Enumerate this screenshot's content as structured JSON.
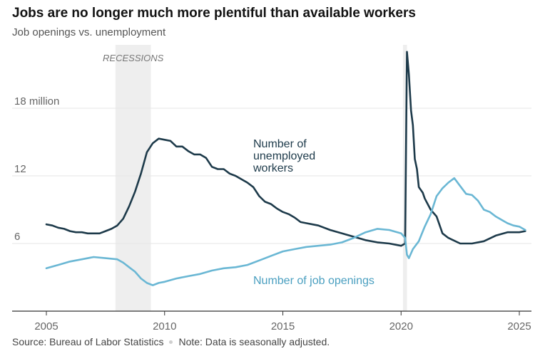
{
  "header": {
    "title": "Jobs are no longer much more plentiful than available workers",
    "subtitle": "Job openings vs. unemployment"
  },
  "footer": {
    "source": "Source: Bureau of Labor Statistics",
    "note": "Note: Data is seasonally adjusted."
  },
  "colors": {
    "unemployed": "#1d3a4a",
    "openings": "#6ab7d4",
    "recession_shade": "#eeeeee",
    "grid": "#e6e6e6",
    "axis": "#333333"
  },
  "chart_data": {
    "type": "line",
    "title": "Jobs are no longer much more plentiful than available workers",
    "subtitle": "Job openings vs. unemployment",
    "xlim": [
      2005,
      2025.5
    ],
    "ylim": [
      0,
      23
    ],
    "x_ticks": [
      2005,
      2010,
      2015,
      2020,
      2025
    ],
    "y_ticks": [
      {
        "value": 6,
        "label": "6"
      },
      {
        "value": 12,
        "label": "12"
      },
      {
        "value": 18,
        "label": "18 million"
      }
    ],
    "grid": true,
    "recessions": [
      {
        "start": 2007.92,
        "end": 2009.42
      },
      {
        "start": 2020.08,
        "end": 2020.25
      }
    ],
    "recession_label": "RECESSIONS",
    "series": [
      {
        "name": "Number of unemployed workers",
        "label_lines": [
          "Number of",
          "unemployed",
          "workers"
        ],
        "x": [
          2005.0,
          2005.25,
          2005.5,
          2005.75,
          2006.0,
          2006.25,
          2006.5,
          2006.75,
          2007.0,
          2007.25,
          2007.5,
          2007.75,
          2008.0,
          2008.25,
          2008.5,
          2008.75,
          2009.0,
          2009.25,
          2009.5,
          2009.75,
          2010.0,
          2010.25,
          2010.5,
          2010.75,
          2011.0,
          2011.25,
          2011.5,
          2011.75,
          2012.0,
          2012.25,
          2012.5,
          2012.75,
          2013.0,
          2013.25,
          2013.5,
          2013.75,
          2014.0,
          2014.25,
          2014.5,
          2014.75,
          2015.0,
          2015.25,
          2015.5,
          2015.75,
          2016.0,
          2016.5,
          2017.0,
          2017.5,
          2018.0,
          2018.5,
          2019.0,
          2019.5,
          2020.0,
          2020.17,
          2020.25,
          2020.33,
          2020.42,
          2020.5,
          2020.58,
          2020.67,
          2020.75,
          2020.92,
          2021.0,
          2021.25,
          2021.5,
          2021.75,
          2022.0,
          2022.5,
          2023.0,
          2023.5,
          2024.0,
          2024.5,
          2025.0,
          2025.25
        ],
        "values": [
          7.7,
          7.6,
          7.4,
          7.3,
          7.1,
          7.0,
          7.0,
          6.9,
          6.9,
          6.9,
          7.1,
          7.3,
          7.6,
          8.2,
          9.3,
          10.6,
          12.2,
          14.1,
          14.9,
          15.3,
          15.2,
          15.1,
          14.6,
          14.6,
          14.2,
          13.9,
          13.9,
          13.6,
          12.8,
          12.6,
          12.6,
          12.2,
          12.0,
          11.7,
          11.4,
          11.0,
          10.2,
          9.7,
          9.5,
          9.1,
          8.8,
          8.6,
          8.3,
          7.9,
          7.8,
          7.6,
          7.2,
          6.9,
          6.6,
          6.3,
          6.1,
          6.0,
          5.8,
          6.0,
          23.0,
          21.0,
          17.8,
          16.5,
          13.5,
          12.6,
          11.0,
          10.5,
          10.0,
          9.0,
          8.4,
          6.9,
          6.5,
          6.0,
          6.0,
          6.2,
          6.7,
          7.0,
          7.0,
          7.1
        ]
      },
      {
        "name": "Number of job openings",
        "label_lines": [
          "Number of job openings"
        ],
        "x": [
          2005.0,
          2005.5,
          2006.0,
          2006.5,
          2007.0,
          2007.5,
          2008.0,
          2008.25,
          2008.5,
          2008.75,
          2009.0,
          2009.25,
          2009.5,
          2009.75,
          2010.0,
          2010.5,
          2011.0,
          2011.5,
          2012.0,
          2012.5,
          2013.0,
          2013.5,
          2014.0,
          2014.5,
          2015.0,
          2015.5,
          2016.0,
          2016.5,
          2017.0,
          2017.5,
          2018.0,
          2018.5,
          2019.0,
          2019.5,
          2020.0,
          2020.17,
          2020.25,
          2020.33,
          2020.5,
          2020.75,
          2021.0,
          2021.25,
          2021.5,
          2021.75,
          2022.0,
          2022.25,
          2022.5,
          2022.75,
          2023.0,
          2023.25,
          2023.5,
          2023.75,
          2024.0,
          2024.25,
          2024.5,
          2024.75,
          2025.0,
          2025.25
        ],
        "values": [
          3.8,
          4.1,
          4.4,
          4.6,
          4.8,
          4.7,
          4.6,
          4.3,
          3.9,
          3.5,
          2.9,
          2.5,
          2.3,
          2.5,
          2.6,
          2.9,
          3.1,
          3.3,
          3.6,
          3.8,
          3.9,
          4.1,
          4.5,
          4.9,
          5.3,
          5.5,
          5.7,
          5.8,
          5.9,
          6.1,
          6.5,
          7.0,
          7.3,
          7.2,
          6.9,
          6.5,
          5.0,
          4.7,
          5.5,
          6.2,
          7.5,
          8.6,
          10.2,
          10.9,
          11.4,
          11.8,
          11.1,
          10.4,
          10.3,
          9.8,
          9.0,
          8.8,
          8.4,
          8.1,
          7.8,
          7.6,
          7.5,
          7.2
        ]
      }
    ]
  }
}
